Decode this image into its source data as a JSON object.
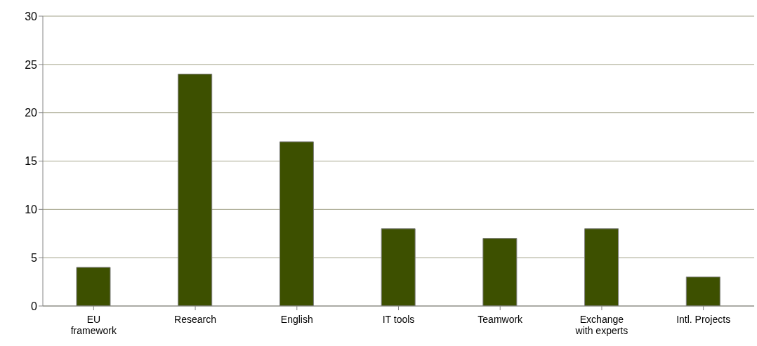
{
  "chart_data": {
    "type": "bar",
    "categories": [
      "EU\nframework",
      "Research",
      "English",
      "IT tools",
      "Teamwork",
      "Exchange\nwith experts",
      "Intl. Projects"
    ],
    "values": [
      4,
      24,
      17,
      8,
      7,
      8,
      3
    ],
    "color": "#3d5000",
    "ylim": [
      0,
      30
    ],
    "yticks": [
      0,
      5,
      10,
      15,
      20,
      25,
      30
    ],
    "grid": "y",
    "legend": false
  }
}
